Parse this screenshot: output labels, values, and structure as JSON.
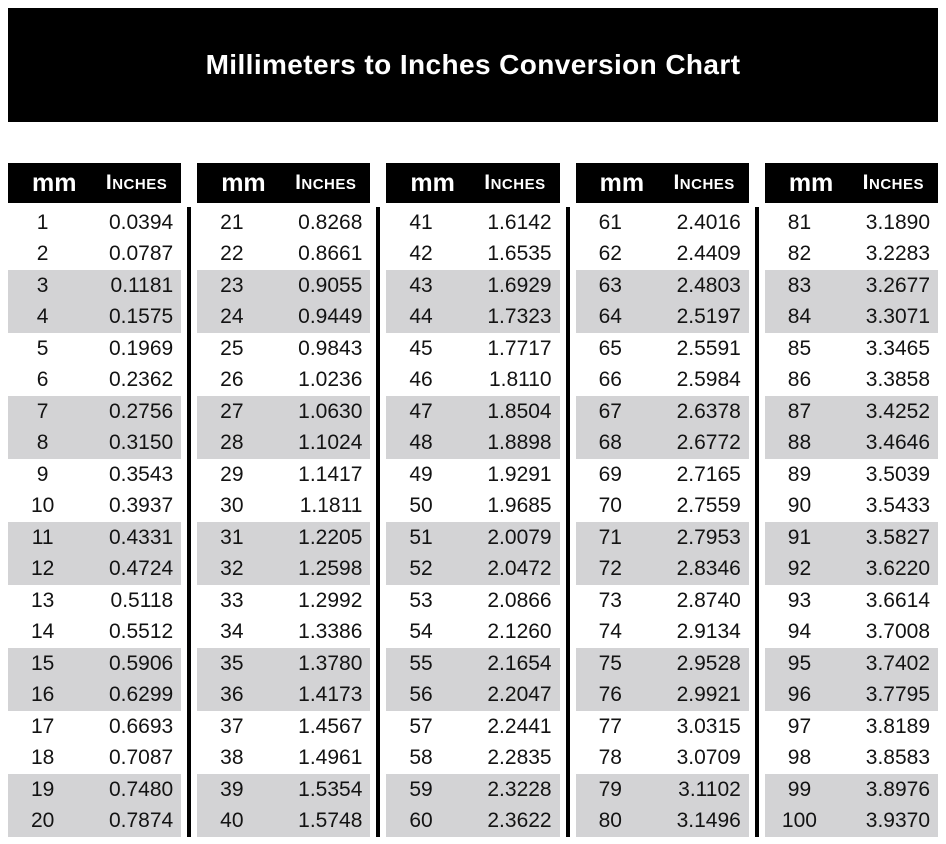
{
  "title": "Millimeters to Inches Conversion Chart",
  "colors": {
    "banner-bg": "#000000",
    "header-bg": "#000000",
    "stripe-gray": "#d3d3d5",
    "text": "#131313"
  },
  "table": {
    "headers": {
      "mm": "mm",
      "inches": "Inches"
    },
    "sections": [
      {
        "name": "mm-1-20",
        "rows": [
          [
            "1",
            "0.0394"
          ],
          [
            "2",
            "0.0787"
          ],
          [
            "3",
            "0.1181"
          ],
          [
            "4",
            "0.1575"
          ],
          [
            "5",
            "0.1969"
          ],
          [
            "6",
            "0.2362"
          ],
          [
            "7",
            "0.2756"
          ],
          [
            "8",
            "0.3150"
          ],
          [
            "9",
            "0.3543"
          ],
          [
            "10",
            "0.3937"
          ],
          [
            "11",
            "0.4331"
          ],
          [
            "12",
            "0.4724"
          ],
          [
            "13",
            "0.5118"
          ],
          [
            "14",
            "0.5512"
          ],
          [
            "15",
            "0.5906"
          ],
          [
            "16",
            "0.6299"
          ],
          [
            "17",
            "0.6693"
          ],
          [
            "18",
            "0.7087"
          ],
          [
            "19",
            "0.7480"
          ],
          [
            "20",
            "0.7874"
          ]
        ]
      },
      {
        "name": "mm-21-40",
        "rows": [
          [
            "21",
            "0.8268"
          ],
          [
            "22",
            "0.8661"
          ],
          [
            "23",
            "0.9055"
          ],
          [
            "24",
            "0.9449"
          ],
          [
            "25",
            "0.9843"
          ],
          [
            "26",
            "1.0236"
          ],
          [
            "27",
            "1.0630"
          ],
          [
            "28",
            "1.1024"
          ],
          [
            "29",
            "1.1417"
          ],
          [
            "30",
            "1.1811"
          ],
          [
            "31",
            "1.2205"
          ],
          [
            "32",
            "1.2598"
          ],
          [
            "33",
            "1.2992"
          ],
          [
            "34",
            "1.3386"
          ],
          [
            "35",
            "1.3780"
          ],
          [
            "36",
            "1.4173"
          ],
          [
            "37",
            "1.4567"
          ],
          [
            "38",
            "1.4961"
          ],
          [
            "39",
            "1.5354"
          ],
          [
            "40",
            "1.5748"
          ]
        ]
      },
      {
        "name": "mm-41-60",
        "rows": [
          [
            "41",
            "1.6142"
          ],
          [
            "42",
            "1.6535"
          ],
          [
            "43",
            "1.6929"
          ],
          [
            "44",
            "1.7323"
          ],
          [
            "45",
            "1.7717"
          ],
          [
            "46",
            "1.8110"
          ],
          [
            "47",
            "1.8504"
          ],
          [
            "48",
            "1.8898"
          ],
          [
            "49",
            "1.9291"
          ],
          [
            "50",
            "1.9685"
          ],
          [
            "51",
            "2.0079"
          ],
          [
            "52",
            "2.0472"
          ],
          [
            "53",
            "2.0866"
          ],
          [
            "54",
            "2.1260"
          ],
          [
            "55",
            "2.1654"
          ],
          [
            "56",
            "2.2047"
          ],
          [
            "57",
            "2.2441"
          ],
          [
            "58",
            "2.2835"
          ],
          [
            "59",
            "2.3228"
          ],
          [
            "60",
            "2.3622"
          ]
        ]
      },
      {
        "name": "mm-61-80",
        "rows": [
          [
            "61",
            "2.4016"
          ],
          [
            "62",
            "2.4409"
          ],
          [
            "63",
            "2.4803"
          ],
          [
            "64",
            "2.5197"
          ],
          [
            "65",
            "2.5591"
          ],
          [
            "66",
            "2.5984"
          ],
          [
            "67",
            "2.6378"
          ],
          [
            "68",
            "2.6772"
          ],
          [
            "69",
            "2.7165"
          ],
          [
            "70",
            "2.7559"
          ],
          [
            "71",
            "2.7953"
          ],
          [
            "72",
            "2.8346"
          ],
          [
            "73",
            "2.8740"
          ],
          [
            "74",
            "2.9134"
          ],
          [
            "75",
            "2.9528"
          ],
          [
            "76",
            "2.9921"
          ],
          [
            "77",
            "3.0315"
          ],
          [
            "78",
            "3.0709"
          ],
          [
            "79",
            "3.1102"
          ],
          [
            "80",
            "3.1496"
          ]
        ]
      },
      {
        "name": "mm-81-100",
        "rows": [
          [
            "81",
            "3.1890"
          ],
          [
            "82",
            "3.2283"
          ],
          [
            "83",
            "3.2677"
          ],
          [
            "84",
            "3.3071"
          ],
          [
            "85",
            "3.3465"
          ],
          [
            "86",
            "3.3858"
          ],
          [
            "87",
            "3.4252"
          ],
          [
            "88",
            "3.4646"
          ],
          [
            "89",
            "3.5039"
          ],
          [
            "90",
            "3.5433"
          ],
          [
            "91",
            "3.5827"
          ],
          [
            "92",
            "3.6220"
          ],
          [
            "93",
            "3.6614"
          ],
          [
            "94",
            "3.7008"
          ],
          [
            "95",
            "3.7402"
          ],
          [
            "96",
            "3.7795"
          ],
          [
            "97",
            "3.8189"
          ],
          [
            "98",
            "3.8583"
          ],
          [
            "99",
            "3.8976"
          ],
          [
            "100",
            "3.9370"
          ]
        ]
      }
    ]
  }
}
